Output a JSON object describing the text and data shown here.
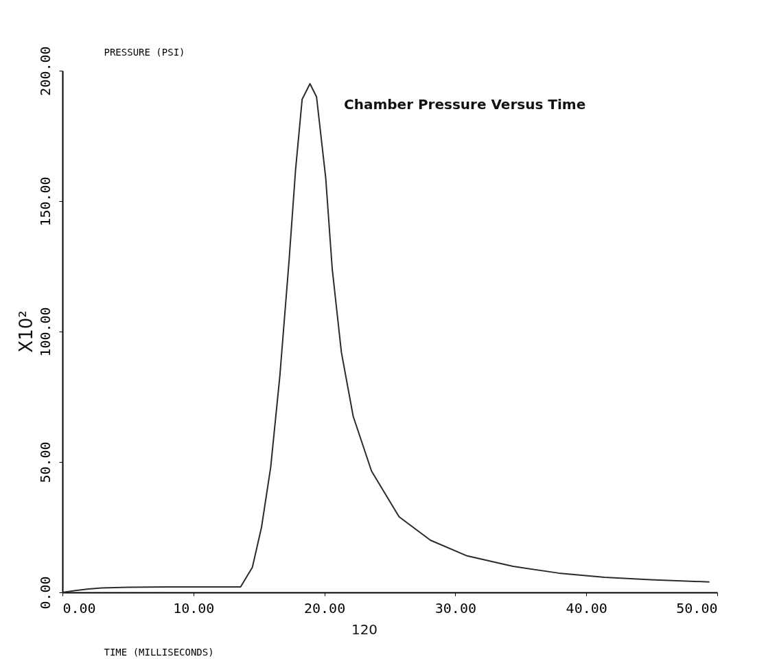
{
  "chart_data": {
    "type": "line",
    "title": "Chamber Pressure Versus Time",
    "xlabel": "TIME (MILLISECONDS)",
    "ylabel": "PRESSURE (PSI)",
    "annotations": [
      "X10²",
      "120"
    ],
    "x": [
      0,
      1,
      2,
      3,
      5,
      8,
      11,
      13.6,
      14.5,
      15.2,
      15.9,
      16.6,
      17.3,
      17.8,
      18.3,
      18.9,
      19.4,
      20.1,
      20.6,
      21.3,
      22.2,
      23.6,
      25.7,
      28.1,
      30.9,
      34.4,
      37.9,
      41.4,
      44.9,
      49.4
    ],
    "series": [
      {
        "color": "#2a2a2a",
        "values": [
          0,
          0.7,
          1.3,
          1.7,
          2,
          2.1,
          2.1,
          2.1,
          9.6,
          25,
          48,
          83,
          127,
          162,
          189,
          195,
          190,
          159,
          124,
          92,
          67.5,
          46.5,
          29,
          20,
          14,
          10,
          7.4,
          5.8,
          4.9,
          4
        ]
      }
    ],
    "xlim": [
      0,
      50
    ],
    "ylim": [
      0,
      200
    ],
    "xticks": [
      {
        "value": 0,
        "label": "0.00"
      },
      {
        "value": 10,
        "label": "10.00"
      },
      {
        "value": 20,
        "label": "20.00"
      },
      {
        "value": 30,
        "label": "30.00"
      },
      {
        "value": 40,
        "label": "40.00"
      },
      {
        "value": 50,
        "label": "50.00"
      }
    ],
    "yticks": [
      {
        "value": 0,
        "label": "0.00"
      },
      {
        "value": 50,
        "label": "50.00"
      },
      {
        "value": 100,
        "label": "100.00"
      },
      {
        "value": 150,
        "label": "150.00"
      },
      {
        "value": 200,
        "label": "200.00"
      }
    ]
  }
}
